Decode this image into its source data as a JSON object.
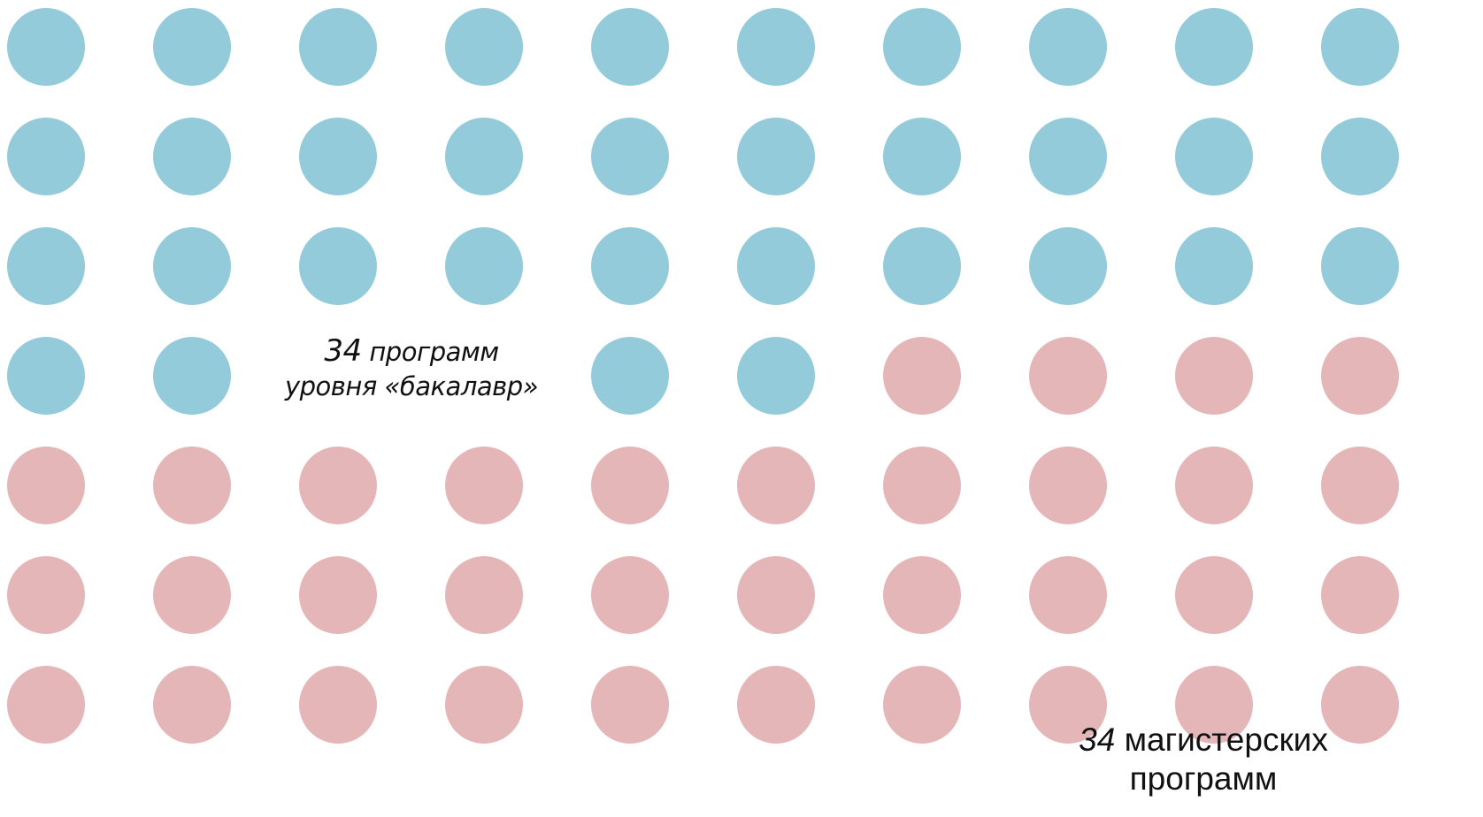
{
  "chart_data": {
    "type": "pictogram",
    "colors": {
      "bachelor": "#93cbdb",
      "master": "#e5b6b8"
    },
    "series": [
      {
        "value": 34,
        "color": "#93cbdb"
      },
      {
        "value": 34,
        "color": "#e5b6b8"
      }
    ],
    "annotations": {
      "bachelor": {
        "number": "34",
        "line1": "программ",
        "line2": "уровня «бакалавр»"
      },
      "master": {
        "number": "34",
        "line1": "магистерских",
        "line2": "программ"
      }
    }
  }
}
